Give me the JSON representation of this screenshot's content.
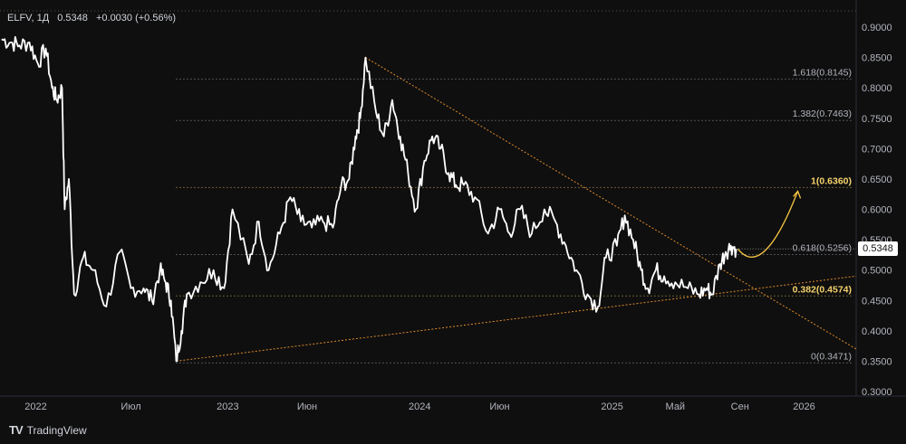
{
  "legend": {
    "symbol": "ELFV, 1Д",
    "last": "0.5348",
    "change": "+0.0030 (+0.56%)"
  },
  "brand": {
    "logo_text": "TV",
    "name": "TradingView"
  },
  "current_price_label": "0.5348",
  "chart_data": {
    "type": "line",
    "title": "",
    "y_ticks": [
      "0.9000",
      "0.8500",
      "0.8000",
      "0.7500",
      "0.7000",
      "0.6500",
      "0.6000",
      "0.5500",
      "0.5000",
      "0.4500",
      "0.4000",
      "0.3500",
      "0.3000"
    ],
    "ylim": [
      0.3,
      0.9
    ],
    "x_ticks": [
      "2022",
      "Июл",
      "2023",
      "Июн",
      "2024",
      "Июн",
      "2025",
      "Май",
      "Сен",
      "2026"
    ],
    "x_tick_dates": [
      "2022-01-01",
      "2022-07-01",
      "2023-01-01",
      "2023-06-01",
      "2024-01-01",
      "2024-06-01",
      "2025-01-01",
      "2025-05-01",
      "2025-09-01",
      "2026-01-01"
    ],
    "xlim": [
      "2021-10-25",
      "2026-04-10"
    ],
    "grid": false,
    "series": [
      {
        "x": [
          "2021-10-28",
          "2021-11-15",
          "2021-12-01",
          "2021-12-20",
          "2022-01-05",
          "2022-01-20",
          "2022-02-01",
          "2022-02-10",
          "2022-02-20",
          "2022-02-25",
          "2022-03-05",
          "2022-03-15",
          "2022-04-01",
          "2022-04-20",
          "2022-05-15",
          "2022-06-10",
          "2022-07-01",
          "2022-07-25",
          "2022-08-10",
          "2022-08-25",
          "2022-09-05",
          "2022-09-15",
          "2022-09-25",
          "2022-10-05",
          "2022-10-15",
          "2022-11-10",
          "2022-12-05",
          "2022-12-25",
          "2023-01-10",
          "2023-02-10",
          "2023-03-01",
          "2023-03-20",
          "2023-04-10",
          "2023-04-30",
          "2023-05-20",
          "2023-06-10",
          "2023-07-01",
          "2023-07-20",
          "2023-08-05",
          "2023-08-20",
          "2023-09-01",
          "2023-09-10",
          "2023-09-20",
          "2023-10-10",
          "2023-10-25",
          "2023-11-10",
          "2023-11-25",
          "2023-12-10",
          "2023-12-25",
          "2024-01-10",
          "2024-01-25",
          "2024-02-10",
          "2024-02-25",
          "2024-03-10",
          "2024-03-25",
          "2024-04-15",
          "2024-05-10",
          "2024-06-01",
          "2024-06-20",
          "2024-07-10",
          "2024-08-01",
          "2024-08-25",
          "2024-09-15",
          "2024-10-05",
          "2024-10-25",
          "2024-11-15",
          "2024-12-05",
          "2024-12-20",
          "2025-01-10",
          "2025-01-25",
          "2025-02-10",
          "2025-02-25",
          "2025-03-10",
          "2025-03-25",
          "2025-04-10",
          "2025-05-01",
          "2025-05-25",
          "2025-06-15",
          "2025-06-30",
          "2025-07-10",
          "2025-07-25",
          "2025-08-05",
          "2025-08-15",
          "2025-08-25"
        ],
        "values": [
          0.88,
          0.875,
          0.87,
          0.875,
          0.84,
          0.865,
          0.8,
          0.78,
          0.8,
          0.6,
          0.65,
          0.46,
          0.52,
          0.5,
          0.44,
          0.53,
          0.47,
          0.47,
          0.45,
          0.5,
          0.48,
          0.45,
          0.35,
          0.4,
          0.46,
          0.48,
          0.5,
          0.47,
          0.6,
          0.51,
          0.58,
          0.5,
          0.56,
          0.62,
          0.58,
          0.57,
          0.58,
          0.57,
          0.64,
          0.65,
          0.72,
          0.75,
          0.85,
          0.76,
          0.72,
          0.78,
          0.72,
          0.66,
          0.6,
          0.68,
          0.72,
          0.7,
          0.66,
          0.64,
          0.64,
          0.62,
          0.56,
          0.6,
          0.56,
          0.6,
          0.56,
          0.6,
          0.58,
          0.54,
          0.5,
          0.46,
          0.44,
          0.52,
          0.54,
          0.59,
          0.55,
          0.5,
          0.47,
          0.5,
          0.49,
          0.48,
          0.47,
          0.46,
          0.47,
          0.46,
          0.51,
          0.53,
          0.54,
          0.535
        ]
      }
    ],
    "fibonacci": [
      {
        "label": "1.618(0.8145)",
        "value": 0.8145,
        "color": "#b2b5be"
      },
      {
        "label": "1.382(0.7463)",
        "value": 0.7463,
        "color": "#b2b5be"
      },
      {
        "label": "1(0.6360)",
        "value": 0.636,
        "color": "#f5d26b"
      },
      {
        "label": "0.618(0.5256)",
        "value": 0.5256,
        "color": "#b2b5be"
      },
      {
        "label": "0.382(0.4574)",
        "value": 0.4574,
        "color": "#f5d26b"
      },
      {
        "label": "0(0.3471)",
        "value": 0.3471,
        "color": "#b2b5be"
      }
    ],
    "trendlines": [
      {
        "from": [
          "2023-09-20",
          0.85
        ],
        "to": [
          "2026-04-10",
          0.37
        ],
        "color": "#e0892b"
      },
      {
        "from": [
          "2022-09-25",
          0.35
        ],
        "to": [
          "2026-04-10",
          0.49
        ],
        "color": "#e0892b"
      }
    ],
    "forecast_arrow": {
      "color": "#f5c542",
      "points": [
        [
          "2025-08-28",
          0.535
        ],
        [
          "2025-10-15",
          0.52
        ],
        [
          "2025-12-20",
          0.63
        ]
      ]
    },
    "last_value": 0.5348,
    "colors": {
      "background": "#0f0f0f",
      "line": "#ffffff",
      "axis_text": "#b2b5be"
    }
  }
}
